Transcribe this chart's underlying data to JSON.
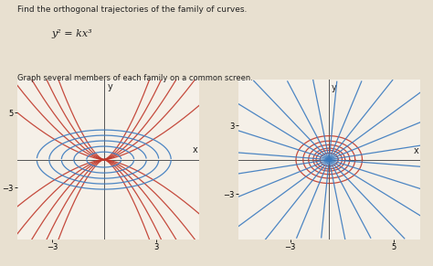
{
  "background_color": "#e8e0d0",
  "plot_bg": "#f5f0e8",
  "title_text": "Find the orthogonal trajectories of the family of curves.",
  "equation_text": "y² = kx³",
  "subtitle_text": "Graph several members of each family on a common screen.",
  "red_color": "#c0392b",
  "blue_color": "#3a7abf",
  "axis_color": "#555555",
  "text_color": "#222222",
  "left_xlim": [
    -5,
    5.5
  ],
  "left_ylim": [
    -8.5,
    8.5
  ],
  "right_xlim": [
    -7,
    7
  ],
  "right_ylim": [
    -7,
    7
  ],
  "k_values": [
    -4,
    -2,
    -1,
    -0.5,
    -0.2,
    0.2,
    0.5,
    1,
    2,
    4
  ],
  "ort_c_values": [
    2,
    6,
    12,
    20,
    30
  ],
  "ellipse_c_values": [
    1,
    2,
    3,
    5,
    8,
    13
  ],
  "line_angles_deg": [
    -80,
    -65,
    -50,
    -35,
    -20,
    -5,
    10,
    25,
    40,
    55,
    70,
    85
  ],
  "tick_fontsize": 6,
  "linewidth": 0.9,
  "fig_width": 4.74,
  "fig_height": 2.91
}
